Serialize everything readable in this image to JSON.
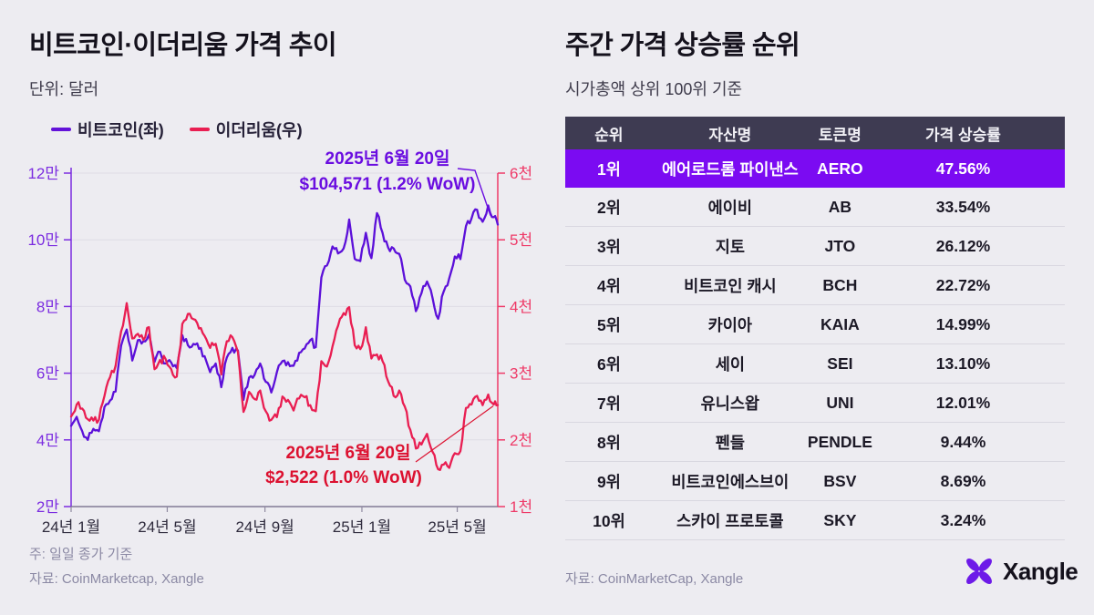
{
  "left": {
    "title": "비트코인·이더리움 가격 추이",
    "subtitle": "단위: 달러",
    "legend": [
      {
        "label": "비트코인(좌)",
        "color": "#6312d9"
      },
      {
        "label": "이더리움(우)",
        "color": "#e91e52"
      }
    ],
    "note1": "주: 일일 종가 기준",
    "note2": "자료: CoinMarketcap, Xangle"
  },
  "right": {
    "title": "주간 가격 상승률 순위",
    "subtitle": "시가총액 상위 100위 기준",
    "table": {
      "headers": [
        "순위",
        "자산명",
        "토큰명",
        "가격 상승률"
      ],
      "rows": [
        {
          "rank": "1위",
          "asset": "에어로드롬 파이낸스",
          "token": "AERO",
          "change": "47.56%"
        },
        {
          "rank": "2위",
          "asset": "에이비",
          "token": "AB",
          "change": "33.54%"
        },
        {
          "rank": "3위",
          "asset": "지토",
          "token": "JTO",
          "change": "26.12%"
        },
        {
          "rank": "4위",
          "asset": "비트코인 캐시",
          "token": "BCH",
          "change": "22.72%"
        },
        {
          "rank": "5위",
          "asset": "카이아",
          "token": "KAIA",
          "change": "14.99%"
        },
        {
          "rank": "6위",
          "asset": "세이",
          "token": "SEI",
          "change": "13.10%"
        },
        {
          "rank": "7위",
          "asset": "유니스왑",
          "token": "UNI",
          "change": "12.01%"
        },
        {
          "rank": "8위",
          "asset": "펜들",
          "token": "PENDLE",
          "change": "9.44%"
        },
        {
          "rank": "9위",
          "asset": "비트코인에스브이",
          "token": "BSV",
          "change": "8.69%"
        },
        {
          "rank": "10위",
          "asset": "스카이 프로토콜",
          "token": "SKY",
          "change": "3.24%"
        }
      ],
      "highlight_row_color": "#7b0bf2",
      "header_color": "#3e3b52"
    },
    "source": "자료: CoinMarketCap, Xangle",
    "logo_text": "Xangle",
    "logo_color": "#6d1ae8"
  },
  "chart_data": {
    "type": "line",
    "title": "비트코인·이더리움 가격 추이",
    "unit": "달러",
    "grid": true,
    "x_tick_labels": [
      "24년 1월",
      "24년 5월",
      "24년 9월",
      "25년 1월",
      "25년 5월"
    ],
    "x_tick_days": [
      0,
      121,
      244,
      366,
      486
    ],
    "total_days": 537,
    "interval_days": 7,
    "left_axis": {
      "labels": [
        "12만",
        "10만",
        "8만",
        "6만",
        "4만",
        "2만"
      ],
      "min": 20000,
      "max": 120000,
      "color": "#7b2ce0"
    },
    "right_axis": {
      "labels": [
        "6천",
        "5천",
        "4천",
        "3천",
        "2천",
        "1천"
      ],
      "min": 1000,
      "max": 6000,
      "color": "#ee3a68"
    },
    "series": [
      {
        "name": "비트코인(좌)",
        "axis": "left",
        "color": "#5c10d9",
        "values": [
          44200,
          46900,
          42600,
          40000,
          43300,
          42600,
          49900,
          51800,
          54500,
          68300,
          73100,
          63800,
          69900,
          69600,
          71600,
          63400,
          66400,
          62900,
          63200,
          61500,
          71400,
          68400,
          68800,
          67300,
          65100,
          60300,
          62900,
          55800,
          64700,
          67600,
          66800,
          52000,
          58700,
          59500,
          62900,
          57400,
          54200,
          60300,
          63600,
          63300,
          62200,
          66100,
          67400,
          69900,
          67800,
          88700,
          92300,
          98000,
          95900,
          97400,
          106100,
          94300,
          93600,
          102100,
          94500,
          108000,
          102100,
          97700,
          97400,
          95800,
          88000,
          86000,
          78600,
          84000,
          87500,
          82500,
          76300,
          84500,
          88500,
          95000,
          94200,
          104100,
          106400,
          109000,
          105400,
          110300,
          106800,
          104571
        ]
      },
      {
        "name": "이더리움(우)",
        "axis": "right",
        "color": "#e91e52",
        "values": [
          2350,
          2530,
          2470,
          2310,
          2290,
          2300,
          2660,
          2940,
          3110,
          3630,
          4050,
          3520,
          3590,
          3500,
          3690,
          3060,
          3200,
          3210,
          3060,
          2950,
          3740,
          3890,
          3810,
          3670,
          3560,
          3380,
          3440,
          2980,
          3480,
          3540,
          3320,
          2420,
          2720,
          2610,
          2740,
          2430,
          2300,
          2340,
          2650,
          2600,
          2440,
          2620,
          2640,
          2520,
          2430,
          3180,
          3100,
          3400,
          3710,
          3900,
          3990,
          3420,
          3360,
          3690,
          3220,
          3280,
          3180,
          2880,
          2660,
          2740,
          2500,
          2150,
          1870,
          1930,
          2090,
          1820,
          1560,
          1630,
          1580,
          1800,
          1830,
          2480,
          2530,
          2660,
          2520,
          2680,
          2530,
          2522
        ]
      }
    ],
    "annotations": [
      {
        "series": "비트코인",
        "line1": "2025년 6월 20일",
        "line2": "$104,571 (1.2% WoW)",
        "color": "#6a0de0"
      },
      {
        "series": "이더리움",
        "line1": "2025년 6월 20일",
        "line2": "$2,522 (1.0% WoW)",
        "color": "#dc1130"
      }
    ],
    "legend_position": "top-left"
  }
}
